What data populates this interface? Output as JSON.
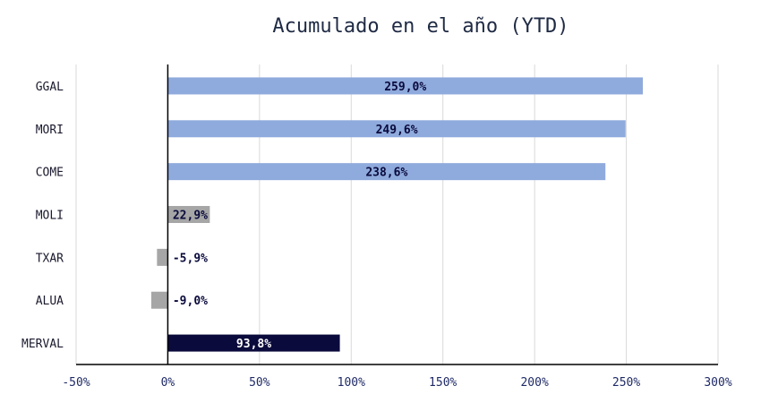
{
  "chart_data": {
    "type": "bar",
    "orientation": "horizontal",
    "title": "Acumulado en el año (YTD)",
    "xlabel": "",
    "ylabel": "",
    "xlim": [
      -50,
      300
    ],
    "x_ticks": [
      -50,
      0,
      50,
      100,
      150,
      200,
      250,
      300
    ],
    "tick_labels": [
      "-50%",
      "0%",
      "50%",
      "100%",
      "150%",
      "200%",
      "250%",
      "300%"
    ],
    "grid": "vertical",
    "legend": "none",
    "categories": [
      "GGAL",
      "MORI",
      "COME",
      "MOLI",
      "TXAR",
      "ALUA",
      "MERVAL"
    ],
    "values": [
      259.0,
      249.6,
      238.6,
      22.9,
      -5.9,
      -9.0,
      93.8
    ],
    "data_labels": [
      "259,0%",
      "249,6%",
      "238,6%",
      "22,9%",
      "-5,9%",
      "-9,0%",
      "93,8%"
    ],
    "colors": [
      "#8faadc",
      "#8faadc",
      "#8faadc",
      "#a6a6a6",
      "#a6a6a6",
      "#a6a6a6",
      "#0a0a3c"
    ],
    "label_colors": [
      "#0a0a3c",
      "#0a0a3c",
      "#0a0a3c",
      "#0a0a3c",
      "#0a0a3c",
      "#0a0a3c",
      "#ffffff"
    ]
  }
}
